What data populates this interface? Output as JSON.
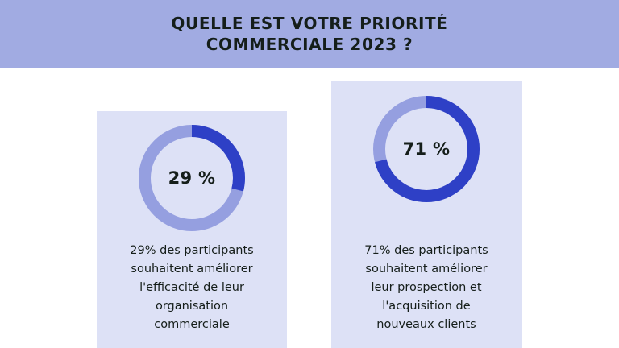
{
  "header": {
    "title_line1": "QUELLE EST VOTRE PRIORITÉ",
    "title_line2": "COMMERCIALE 2023 ?"
  },
  "colors": {
    "header_bg": "#a1abe2",
    "card_bg": "#dde1f6",
    "ring_track": "#959fe0",
    "ring_value": "#2e40c6",
    "text": "#151e1a"
  },
  "chart_data": [
    {
      "type": "pie",
      "variant": "donut",
      "value": 29,
      "unit": "%",
      "center_label": "29 %",
      "description": [
        "29% des participants",
        "souhaitent améliorer",
        "l'efficacité de leur",
        "organisation",
        "commerciale"
      ]
    },
    {
      "type": "pie",
      "variant": "donut",
      "value": 71,
      "unit": "%",
      "center_label": "71 %",
      "description": [
        "71% des participants",
        "souhaitent améliorer",
        "leur prospection et",
        "l'acquisition de",
        "nouveaux clients"
      ]
    }
  ]
}
